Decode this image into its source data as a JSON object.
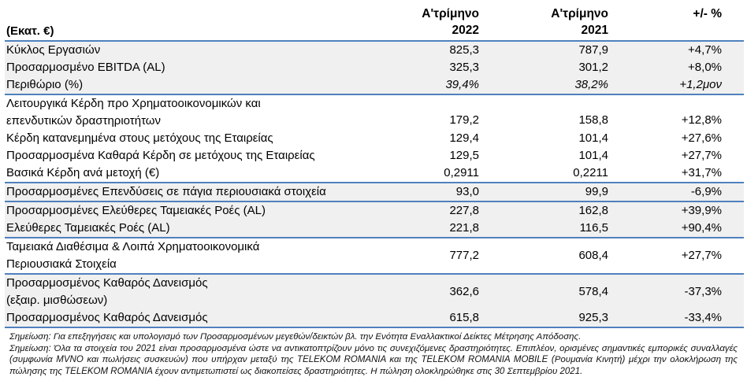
{
  "colors": {
    "border_blue": "#4f81bd",
    "row_shade": "#f0f0f0",
    "text": "#000000"
  },
  "table": {
    "unit_header": "(Εκατ. €)",
    "columns": [
      {
        "line1": "Α'τρίμηνο",
        "line2": "2022"
      },
      {
        "line1": "Α'τρίμηνο",
        "line2": "2021"
      },
      {
        "line1": "+/- %"
      }
    ],
    "groups": [
      {
        "shaded": true,
        "rows": [
          {
            "label": [
              "Κύκλος Εργασιών"
            ],
            "v2022": "825,3",
            "v2021": "787,9",
            "change": "+4,7%"
          },
          {
            "label": [
              "Προσαρμοσμένο EBITDA (AL)"
            ],
            "v2022": "325,3",
            "v2021": "301,2",
            "change": "+8,0%"
          },
          {
            "label": [
              "Περιθώριο (%)"
            ],
            "v2022": "39,4%",
            "v2021": "38,2%",
            "change": "+1,2μον",
            "italic_values": true
          }
        ]
      },
      {
        "shaded": false,
        "rows": [
          {
            "label": [
              "Λειτουργικά Κέρδη προ Χρηματοοικονομικών και",
              "επενδυτικών δραστηριοτήτων"
            ],
            "v2022": "179,2",
            "v2021": "158,8",
            "change": "+12,8%",
            "valign": "end"
          },
          {
            "label": [
              "Κέρδη κατανεμημένα στους μετόχους της Εταιρείας"
            ],
            "v2022": "129,4",
            "v2021": "101,4",
            "change": "+27,6%"
          },
          {
            "label": [
              "Προσαρμοσμένα Καθαρά Κέρδη σε μετόχους της Εταιρείας"
            ],
            "v2022": "129,5",
            "v2021": "101,4",
            "change": "+27,7%"
          },
          {
            "label": [
              "Βασικά Κέρδη ανά μετοχή (€)"
            ],
            "v2022": "0,2911",
            "v2021": "0,2211",
            "change": "+31,7%"
          }
        ]
      },
      {
        "shaded": true,
        "rows": [
          {
            "label": [
              "Προσαρμοσμένες Επενδύσεις σε πάγια περιουσιακά στοιχεία"
            ],
            "v2022": "93,0",
            "v2021": "99,9",
            "change": "-6,9%"
          }
        ]
      },
      {
        "shaded": true,
        "rows": [
          {
            "label": [
              "Προσαρμοσμένες Ελεύθερες Ταμειακές Ροές (AL)"
            ],
            "v2022": "227,8",
            "v2021": "162,8",
            "change": "+39,9%"
          },
          {
            "label": [
              "Ελεύθερες Ταμειακές Ροές (AL)"
            ],
            "v2022": "221,8",
            "v2021": "116,5",
            "change": "+90,4%"
          }
        ]
      },
      {
        "shaded": false,
        "rows": [
          {
            "label": [
              "Ταμειακά Διαθέσιμα & Λοιπά Χρηματοοικονομικά",
              "Περιουσιακά Στοιχεία"
            ],
            "v2022": "777,2",
            "v2021": "608,4",
            "change": "+27,7%"
          }
        ]
      },
      {
        "shaded": true,
        "rows": [
          {
            "label": [
              "Προσαρμοσμένος Καθαρός Δανεισμός",
              "(εξαιρ. μισθώσεων)"
            ],
            "v2022": "362,6",
            "v2021": "578,4",
            "change": "-37,3%"
          },
          {
            "label": [
              "Προσαρμοσμένος Καθαρός Δανεισμός"
            ],
            "v2022": "615,8",
            "v2021": "925,3",
            "change": "-33,4%"
          }
        ]
      }
    ]
  },
  "footnotes": [
    "Σημείωση: Για επεξηγήσεις και υπολογισμό των Προσαρμοσμένων μεγεθών/δεικτών βλ. την Ενότητα Εναλλακτικοί Δείκτες Μέτρησης Απόδοσης.",
    "Σημείωση: Όλα τα στοιχεία του 2021 είναι προσαρμοσμένα ώστε να αντικατοπτρίζουν μόνο τις συνεχιζόμενες δραστηριότητες. Επιπλέον, ορισμένες σημαντικές εμπορικές συναλλαγές (συμφωνία MVNO και πωλήσεις συσκευών) που υπήρχαν μεταξύ της TELEKOM ROMANIA και της TELEKOM ROMANIA MOBILE (Ρουμανία Κινητή) μέχρι την ολοκλήρωση της πώλησης της TELEKOM ROMANIA έχουν αντιμετωπιστεί ως διακοπείσες δραστηριότητες. Η πώληση ολοκληρώθηκε στις 30 Σεπτεμβρίου 2021."
  ]
}
